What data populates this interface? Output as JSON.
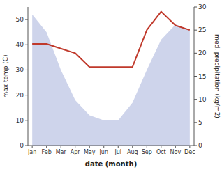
{
  "chart_data": {
    "type": "area",
    "xlabel": "date (month)",
    "ylabel": "max temp (C)",
    "y2label": "med. precipitation (kg/m2)",
    "categories": [
      "Jan",
      "Feb",
      "Mar",
      "Apr",
      "May",
      "Jun",
      "Jul",
      "Aug",
      "Sep",
      "Oct",
      "Nov",
      "Dec"
    ],
    "series": [
      {
        "type": "area",
        "color": "#c5cce8",
        "values": [
          52,
          45,
          30,
          18,
          12,
          10,
          10,
          17,
          30,
          42,
          48,
          46
        ]
      },
      {
        "type": "line",
        "axis": "y2",
        "color": "#c0392b",
        "values": [
          22,
          22,
          21,
          20,
          17,
          17,
          17,
          17,
          25,
          29,
          26,
          25
        ]
      }
    ],
    "ylim": [
      0,
      55
    ],
    "yticks": [
      0,
      10,
      20,
      30,
      40,
      50
    ],
    "y2lim": [
      0,
      30
    ],
    "y2ticks": [
      0,
      5,
      10,
      15,
      20,
      25,
      30
    ],
    "grid": false
  }
}
